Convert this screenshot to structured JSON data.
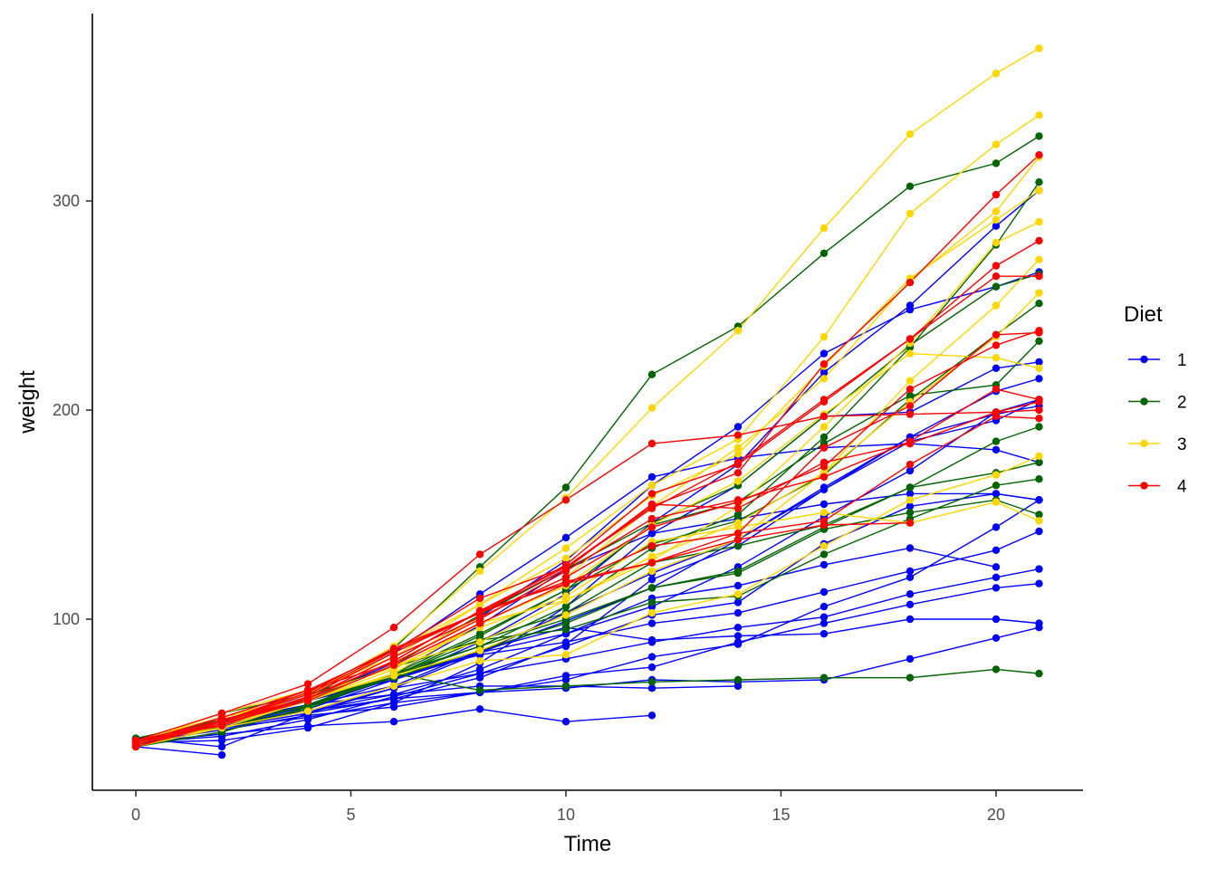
{
  "chart_data": {
    "type": "line",
    "xlabel": "Time",
    "ylabel": "weight",
    "xlim": [
      -2,
      22
    ],
    "ylim": [
      20,
      390
    ],
    "x_ticks": [
      0,
      5,
      10,
      15,
      20
    ],
    "y_ticks": [
      100,
      200,
      300
    ],
    "grid": false,
    "legend": {
      "title": "Diet",
      "placement": "right",
      "entries": [
        {
          "label": "1",
          "color": "#0000FF"
        },
        {
          "label": "2",
          "color": "#006400"
        },
        {
          "label": "3",
          "color": "#FFD700"
        },
        {
          "label": "4",
          "color": "#FF0000"
        }
      ]
    },
    "x": [
      0,
      2,
      4,
      6,
      8,
      10,
      12,
      14,
      16,
      18,
      20,
      21
    ],
    "series": [
      {
        "diet": "1",
        "values": [
          42,
          51,
          59,
          64,
          76,
          93,
          106,
          125,
          149,
          171,
          199,
          205
        ]
      },
      {
        "diet": "1",
        "values": [
          40,
          49,
          58,
          72,
          84,
          103,
          122,
          138,
          162,
          187,
          209,
          215
        ]
      },
      {
        "diet": "1",
        "values": [
          43,
          39,
          55,
          67,
          84,
          99,
          115,
          138,
          163,
          187,
          198,
          202
        ]
      },
      {
        "diet": "1",
        "values": [
          42,
          49,
          56,
          67,
          74,
          87,
          102,
          108,
          136,
          154,
          160,
          157
        ]
      },
      {
        "diet": "1",
        "values": [
          41,
          42,
          48,
          60,
          79,
          106,
          141,
          164,
          197,
          199,
          220,
          223
        ]
      },
      {
        "diet": "1",
        "values": [
          41,
          49,
          59,
          74,
          97,
          124,
          141,
          148,
          155,
          160,
          160,
          157
        ]
      },
      {
        "diet": "1",
        "values": [
          41,
          49,
          57,
          71,
          89,
          112,
          146,
          174,
          218,
          250,
          288,
          305
        ]
      },
      {
        "diet": "1",
        "values": [
          42,
          50,
          61,
          71,
          84,
          93,
          110,
          116,
          126,
          134,
          125,
          null
        ]
      },
      {
        "diet": "1",
        "values": [
          42,
          51,
          59,
          68,
          85,
          96,
          90,
          92,
          93,
          100,
          100,
          98
        ]
      },
      {
        "diet": "1",
        "values": [
          41,
          44,
          52,
          63,
          74,
          81,
          89,
          96,
          101,
          112,
          120,
          124
        ]
      },
      {
        "diet": "1",
        "values": [
          43,
          51,
          63,
          84,
          112,
          139,
          168,
          177,
          182,
          184,
          181,
          175
        ]
      },
      {
        "diet": "1",
        "values": [
          41,
          49,
          56,
          62,
          72,
          88,
          119,
          135,
          162,
          185,
          195,
          205
        ]
      },
      {
        "diet": "1",
        "values": [
          41,
          48,
          53,
          60,
          65,
          67,
          71,
          70,
          71,
          81,
          91,
          96
        ]
      },
      {
        "diet": "1",
        "values": [
          41,
          49,
          62,
          79,
          101,
          128,
          164,
          192,
          227,
          248,
          259,
          266
        ]
      },
      {
        "diet": "1",
        "values": [
          41,
          49,
          56,
          64,
          68,
          68,
          67,
          68,
          null,
          null,
          null,
          null
        ]
      },
      {
        "diet": "1",
        "values": [
          41,
          45,
          49,
          51,
          57,
          51,
          54,
          null,
          null,
          null,
          null,
          null
        ]
      },
      {
        "diet": "1",
        "values": [
          42,
          51,
          61,
          72,
          83,
          89,
          98,
          103,
          113,
          123,
          133,
          142
        ]
      },
      {
        "diet": "1",
        "values": [
          39,
          35,
          null,
          null,
          null,
          null,
          null,
          null,
          null,
          null,
          null,
          null
        ]
      },
      {
        "diet": "1",
        "values": [
          43,
          48,
          55,
          62,
          65,
          71,
          82,
          88,
          106,
          120,
          144,
          157
        ]
      },
      {
        "diet": "1",
        "values": [
          41,
          47,
          54,
          58,
          65,
          73,
          77,
          89,
          98,
          107,
          115,
          117
        ]
      },
      {
        "diet": "2",
        "values": [
          40,
          50,
          62,
          86,
          125,
          163,
          217,
          240,
          275,
          307,
          318,
          331
        ]
      },
      {
        "diet": "2",
        "values": [
          41,
          55,
          64,
          77,
          90,
          95,
          108,
          111,
          131,
          148,
          164,
          167
        ]
      },
      {
        "diet": "2",
        "values": [
          43,
          52,
          61,
          73,
          90,
          103,
          127,
          135,
          145,
          163,
          170,
          175
        ]
      },
      {
        "diet": "2",
        "values": [
          42,
          52,
          58,
          74,
          66,
          68,
          70,
          71,
          72,
          72,
          76,
          74
        ]
      },
      {
        "diet": "2",
        "values": [
          40,
          49,
          62,
          78,
          102,
          124,
          146,
          164,
          197,
          231,
          259,
          265
        ]
      },
      {
        "diet": "2",
        "values": [
          42,
          48,
          57,
          74,
          93,
          114,
          136,
          147,
          169,
          205,
          236,
          251
        ]
      },
      {
        "diet": "2",
        "values": [
          39,
          46,
          58,
          73,
          87,
          100,
          115,
          123,
          144,
          163,
          185,
          192
        ]
      },
      {
        "diet": "2",
        "values": [
          39,
          46,
          58,
          73,
          92,
          114,
          145,
          156,
          184,
          207,
          212,
          233
        ]
      },
      {
        "diet": "2",
        "values": [
          39,
          48,
          59,
          74,
          87,
          106,
          134,
          150,
          187,
          230,
          279,
          309
        ]
      },
      {
        "diet": "2",
        "values": [
          42,
          48,
          59,
          72,
          85,
          98,
          115,
          122,
          143,
          151,
          157,
          150
        ]
      },
      {
        "diet": "3",
        "values": [
          42,
          53,
          62,
          73,
          85,
          102,
          123,
          138,
          170,
          204,
          235,
          256
        ]
      },
      {
        "diet": "3",
        "values": [
          41,
          49,
          65,
          82,
          107,
          129,
          159,
          179,
          221,
          263,
          291,
          305
        ]
      },
      {
        "diet": "3",
        "values": [
          39,
          50,
          63,
          77,
          96,
          111,
          137,
          144,
          151,
          146,
          156,
          147
        ]
      },
      {
        "diet": "3",
        "values": [
          41,
          49,
          63,
          85,
          107,
          134,
          164,
          186,
          235,
          294,
          327,
          341
        ]
      },
      {
        "diet": "3",
        "values": [
          41,
          53,
          64,
          87,
          123,
          158,
          201,
          238,
          287,
          332,
          361,
          373
        ]
      },
      {
        "diet": "3",
        "values": [
          39,
          48,
          61,
          76,
          98,
          116,
          145,
          166,
          198,
          227,
          225,
          220
        ]
      },
      {
        "diet": "3",
        "values": [
          41,
          48,
          56,
          68,
          80,
          83,
          103,
          112,
          135,
          157,
          169,
          178
        ]
      },
      {
        "diet": "3",
        "values": [
          41,
          49,
          61,
          74,
          98,
          109,
          128,
          154,
          192,
          232,
          280,
          290
        ]
      },
      {
        "diet": "3",
        "values": [
          42,
          50,
          61,
          78,
          89,
          109,
          130,
          146,
          170,
          214,
          250,
          272
        ]
      },
      {
        "diet": "3",
        "values": [
          41,
          55,
          66,
          79,
          101,
          120,
          154,
          182,
          215,
          262,
          295,
          321
        ]
      },
      {
        "diet": "4",
        "values": [
          42,
          51,
          66,
          85,
          103,
          124,
          155,
          153,
          175,
          184,
          199,
          204
        ]
      },
      {
        "diet": "4",
        "values": [
          42,
          49,
          63,
          84,
          103,
          126,
          160,
          174,
          204,
          234,
          269,
          281
        ]
      },
      {
        "diet": "4",
        "values": [
          42,
          55,
          69,
          96,
          131,
          157,
          184,
          188,
          197,
          198,
          199,
          200
        ]
      },
      {
        "diet": "4",
        "values": [
          42,
          51,
          65,
          86,
          103,
          118,
          127,
          138,
          145,
          146,
          null,
          null
        ]
      },
      {
        "diet": "4",
        "values": [
          41,
          50,
          61,
          78,
          98,
          117,
          135,
          141,
          147,
          174,
          197,
          196
        ]
      },
      {
        "diet": "4",
        "values": [
          40,
          52,
          62,
          82,
          101,
          120,
          144,
          156,
          173,
          210,
          231,
          238
        ]
      },
      {
        "diet": "4",
        "values": [
          41,
          53,
          66,
          79,
          100,
          123,
          148,
          157,
          168,
          185,
          210,
          205
        ]
      },
      {
        "diet": "4",
        "values": [
          39,
          50,
          62,
          80,
          104,
          125,
          154,
          170,
          222,
          261,
          303,
          322
        ]
      },
      {
        "diet": "4",
        "values": [
          40,
          51,
          62,
          80,
          104,
          117,
          127,
          141,
          182,
          202,
          236,
          237
        ]
      },
      {
        "diet": "4",
        "values": [
          41,
          53,
          64,
          87,
          123,
          158,
          201,
          238,
          287,
          332,
          361,
          373
        ],
        "skip": true
      },
      {
        "diet": "4",
        "values": [
          39,
          51,
          64,
          85,
          110,
          125,
          153,
          175,
          205,
          234,
          264,
          264
        ]
      }
    ]
  }
}
